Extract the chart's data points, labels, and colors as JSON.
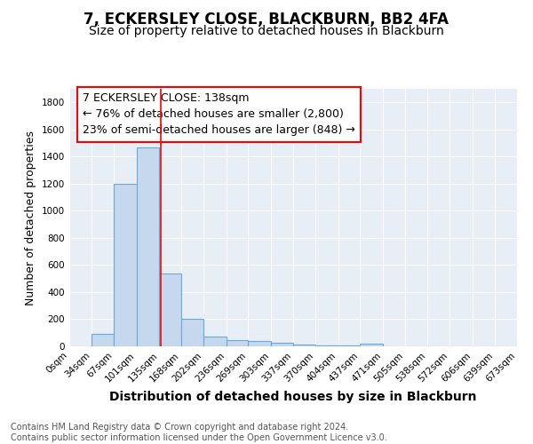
{
  "title1": "7, ECKERSLEY CLOSE, BLACKBURN, BB2 4FA",
  "title2": "Size of property relative to detached houses in Blackburn",
  "xlabel": "Distribution of detached houses by size in Blackburn",
  "ylabel": "Number of detached properties",
  "bar_edges": [
    0,
    34,
    67,
    101,
    135,
    168,
    202,
    236,
    269,
    303,
    337,
    370,
    404,
    437,
    471,
    505,
    538,
    572,
    606,
    639,
    673
  ],
  "bar_heights": [
    0,
    90,
    1200,
    1470,
    540,
    205,
    70,
    47,
    38,
    28,
    15,
    8,
    5,
    18,
    0,
    0,
    0,
    0,
    0,
    0
  ],
  "bar_color": "#c5d8ed",
  "bar_edge_color": "#6aaad4",
  "red_line_x": 138,
  "annotation_line1": "7 ECKERSLEY CLOSE: 138sqm",
  "annotation_line2": "← 76% of detached houses are smaller (2,800)",
  "annotation_line3": "23% of semi-detached houses are larger (848) →",
  "ylim": [
    0,
    1900
  ],
  "yticks": [
    0,
    200,
    400,
    600,
    800,
    1000,
    1200,
    1400,
    1600,
    1800
  ],
  "tick_labels": [
    "0sqm",
    "34sqm",
    "67sqm",
    "101sqm",
    "135sqm",
    "168sqm",
    "202sqm",
    "236sqm",
    "269sqm",
    "303sqm",
    "337sqm",
    "370sqm",
    "404sqm",
    "437sqm",
    "471sqm",
    "505sqm",
    "538sqm",
    "572sqm",
    "606sqm",
    "639sqm",
    "673sqm"
  ],
  "background_color": "#e8eef6",
  "grid_color": "#ffffff",
  "footnote": "Contains HM Land Registry data © Crown copyright and database right 2024.\nContains public sector information licensed under the Open Government Licence v3.0.",
  "title1_fontsize": 12,
  "title2_fontsize": 10,
  "ylabel_fontsize": 9,
  "xlabel_fontsize": 10,
  "annotation_fontsize": 9,
  "footnote_fontsize": 7,
  "tick_fontsize": 7.5
}
